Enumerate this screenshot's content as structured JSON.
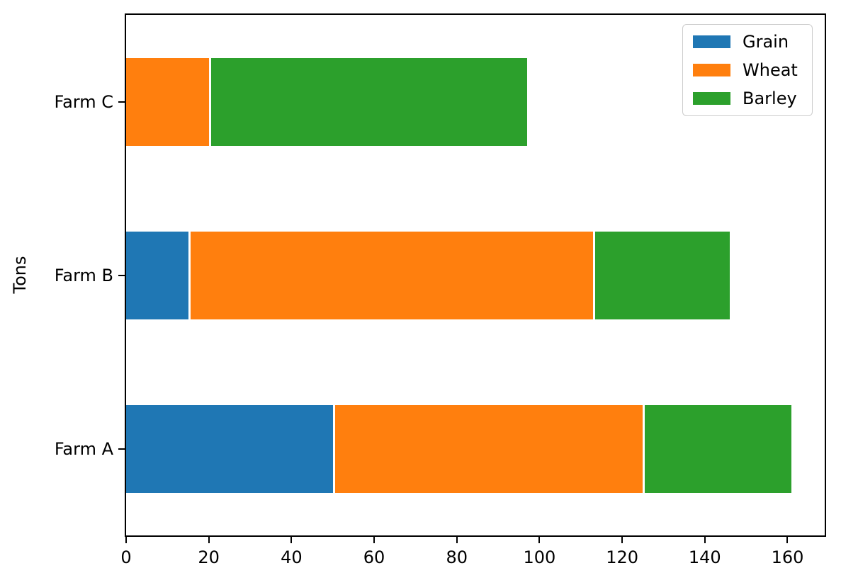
{
  "chart_data": {
    "type": "bar",
    "orientation": "horizontal",
    "stacked": true,
    "title": "",
    "xlabel": "",
    "ylabel": "Tons",
    "categories": [
      "Farm A",
      "Farm B",
      "Farm C"
    ],
    "series": [
      {
        "name": "Grain",
        "color": "#1f77b4",
        "values": [
          50,
          15,
          0
        ]
      },
      {
        "name": "Wheat",
        "color": "#ff7f0e",
        "values": [
          75,
          98,
          20
        ]
      },
      {
        "name": "Barley",
        "color": "#2ca02c",
        "values": [
          36,
          33,
          77
        ]
      }
    ],
    "stacked_totals": [
      161,
      146,
      97
    ],
    "xticks": [
      0,
      20,
      40,
      60,
      80,
      100,
      120,
      140,
      160
    ],
    "xlim": [
      0,
      169
    ],
    "grid": false,
    "legend": {
      "position": "upper-right",
      "entries": [
        "Grain",
        "Wheat",
        "Barley"
      ]
    }
  },
  "colors": {
    "background": "#ffffff",
    "axis": "#000000",
    "legend_border": "#cccccc"
  }
}
